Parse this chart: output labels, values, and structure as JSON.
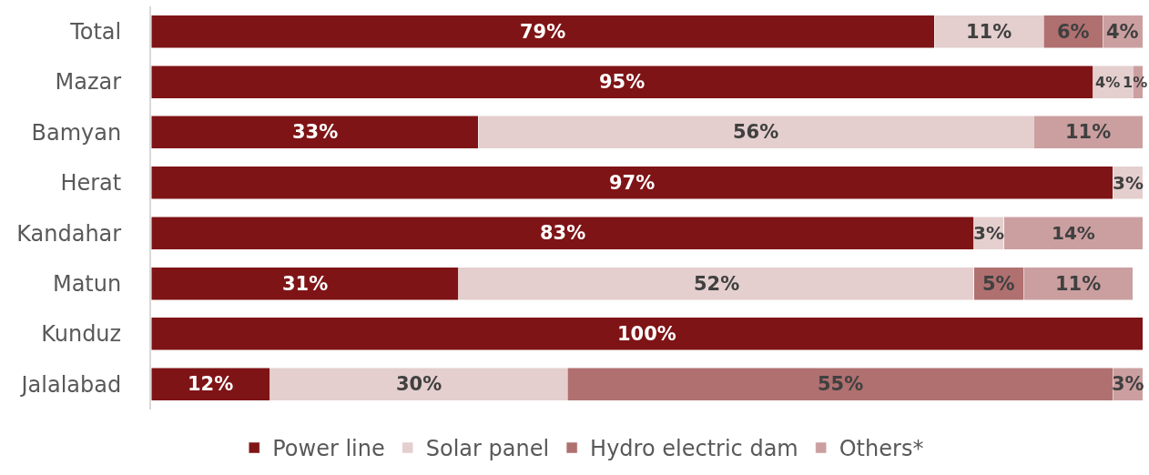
{
  "chart_data": {
    "type": "bar",
    "orientation": "horizontal",
    "stacked": true,
    "categories": [
      "Total",
      "Mazar",
      "Bamyan",
      "Herat",
      "Kandahar",
      "Matun",
      "Kunduz",
      "Jalalabad"
    ],
    "series": [
      {
        "name": "Power line",
        "color": "#7f1416",
        "values": [
          79,
          95,
          33,
          97,
          83,
          31,
          100,
          12
        ],
        "value_labels": [
          "79%",
          "95%",
          "33%",
          "97%",
          "83%",
          "31%",
          "100%",
          "12%"
        ]
      },
      {
        "name": "Solar panel",
        "color": "#e4cfce",
        "values": [
          11,
          4,
          56,
          3,
          3,
          52,
          null,
          30
        ],
        "value_labels": [
          "11%",
          "4%",
          "56%",
          "3%",
          "3%",
          "52%",
          null,
          "30%"
        ]
      },
      {
        "name": "Hydro electric dam",
        "color": "#b07070",
        "values": [
          6,
          null,
          null,
          null,
          null,
          5,
          null,
          55
        ],
        "value_labels": [
          "6%",
          null,
          null,
          null,
          null,
          "5%",
          null,
          "55%"
        ]
      },
      {
        "name": "Others*",
        "color": "#cb9fa0",
        "values": [
          4,
          1,
          11,
          null,
          14,
          11,
          null,
          3
        ],
        "value_labels": [
          "4%",
          "1%",
          "11%",
          null,
          "14%",
          "11%",
          null,
          "3%"
        ]
      }
    ],
    "xlim": [
      0,
      100
    ],
    "tick_labels": "y",
    "legend": "bottom"
  }
}
